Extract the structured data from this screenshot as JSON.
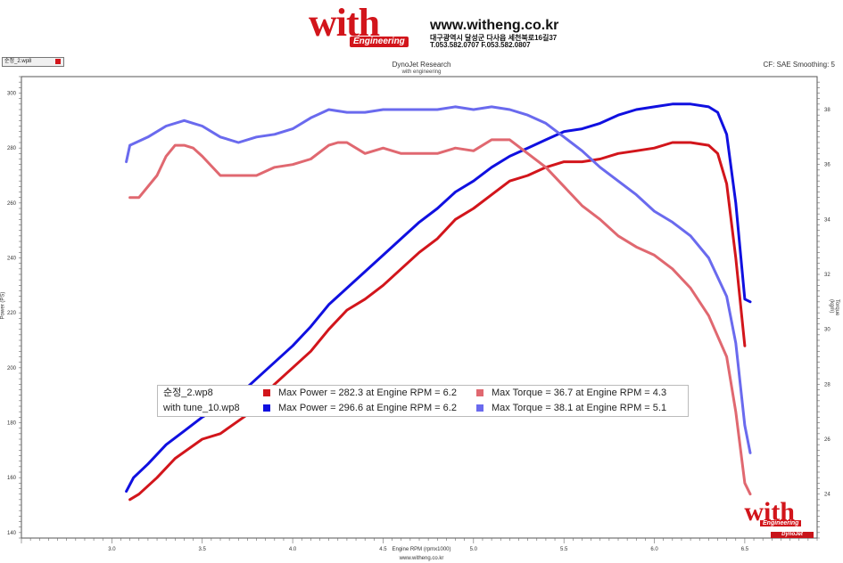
{
  "header": {
    "logo_text": "with",
    "logo_sub": "Engineering",
    "website": "www.witheng.co.kr",
    "address": "대구광역시 달성군 다사읍 세천북로16길37",
    "phone": "T.053.582.0707 F.053.582.0807"
  },
  "file_tab": {
    "label": "순정_2.wp8"
  },
  "chart_data": {
    "type": "line",
    "title": "DynoJet Research",
    "subtitle": "with engineering",
    "corner_note": "CF: SAE Smoothing: 5",
    "xlabel": "Engine RPM (rpmx1000)",
    "ylabel_left": "Power (PS)",
    "ylabel_right": "Torque (kgm)",
    "footer": "www.witheng.co.kr",
    "xlim": [
      2.5,
      6.9
    ],
    "ylim_left": [
      138,
      306
    ],
    "ylim_right": [
      22.4,
      39.2
    ],
    "x_ticks": [
      3.0,
      3.5,
      4.0,
      4.5,
      5.0,
      5.5,
      6.0,
      6.5
    ],
    "x_tick_labels": [
      "3.0",
      "3.5",
      "4.0",
      "4.5",
      "5.0",
      "5.5",
      "6.0",
      "6.5"
    ],
    "y_left_ticks": [
      140,
      160,
      180,
      200,
      220,
      240,
      260,
      280,
      300
    ],
    "y_left_tick_labels": [
      "140",
      "160",
      "180",
      "200",
      "220",
      "240",
      "260",
      "280",
      "300"
    ],
    "y_right_ticks": [
      24,
      26,
      28,
      30,
      32,
      34,
      36,
      38
    ],
    "y_right_tick_labels": [
      "24",
      "26",
      "28",
      "30",
      "32",
      "34",
      "36",
      "38"
    ],
    "series": [
      {
        "name": "순정_2.wp8 Power",
        "axis": "left",
        "color": "#d2151b",
        "x": [
          3.1,
          3.15,
          3.25,
          3.35,
          3.5,
          3.6,
          3.75,
          3.9,
          4.0,
          4.1,
          4.2,
          4.3,
          4.4,
          4.5,
          4.6,
          4.7,
          4.8,
          4.9,
          5.0,
          5.1,
          5.2,
          5.3,
          5.4,
          5.5,
          5.6,
          5.7,
          5.8,
          5.9,
          6.0,
          6.1,
          6.2,
          6.3,
          6.35,
          6.4,
          6.45,
          6.5
        ],
        "y": [
          152,
          154,
          160,
          167,
          174,
          176,
          183,
          194,
          200,
          206,
          214,
          221,
          225,
          230,
          236,
          242,
          247,
          254,
          258,
          263,
          268,
          270,
          273,
          275,
          275,
          276,
          278,
          279,
          280,
          282,
          282,
          281,
          278,
          267,
          240,
          208
        ]
      },
      {
        "name": "with tune_10.wp8 Power",
        "axis": "left",
        "color": "#1010e0",
        "x": [
          3.08,
          3.12,
          3.2,
          3.3,
          3.4,
          3.5,
          3.6,
          3.7,
          3.8,
          3.9,
          4.0,
          4.1,
          4.2,
          4.3,
          4.4,
          4.5,
          4.6,
          4.7,
          4.8,
          4.9,
          5.0,
          5.1,
          5.2,
          5.3,
          5.4,
          5.5,
          5.6,
          5.7,
          5.8,
          5.9,
          6.0,
          6.1,
          6.2,
          6.3,
          6.35,
          6.4,
          6.45,
          6.5,
          6.53
        ],
        "y": [
          155,
          160,
          165,
          172,
          177,
          182,
          186,
          190,
          196,
          202,
          208,
          215,
          223,
          229,
          235,
          241,
          247,
          253,
          258,
          264,
          268,
          273,
          277,
          280,
          283,
          286,
          287,
          289,
          292,
          294,
          295,
          296,
          296,
          295,
          293,
          285,
          260,
          225,
          224
        ]
      },
      {
        "name": "순정_2.wp8 Torque",
        "axis": "right",
        "color": "#e06870",
        "x": [
          3.1,
          3.15,
          3.25,
          3.3,
          3.35,
          3.4,
          3.45,
          3.5,
          3.6,
          3.7,
          3.8,
          3.9,
          4.0,
          4.1,
          4.2,
          4.25,
          4.3,
          4.4,
          4.5,
          4.6,
          4.7,
          4.8,
          4.9,
          5.0,
          5.1,
          5.2,
          5.3,
          5.4,
          5.5,
          5.6,
          5.7,
          5.8,
          5.9,
          6.0,
          6.1,
          6.2,
          6.3,
          6.4,
          6.45,
          6.5,
          6.53
        ],
        "y": [
          34.8,
          34.8,
          35.6,
          36.3,
          36.7,
          36.7,
          36.6,
          36.3,
          35.6,
          35.6,
          35.6,
          35.9,
          36.0,
          36.2,
          36.7,
          36.8,
          36.8,
          36.4,
          36.6,
          36.4,
          36.4,
          36.4,
          36.6,
          36.5,
          36.9,
          36.9,
          36.4,
          35.9,
          35.2,
          34.5,
          34.0,
          33.4,
          33.0,
          32.7,
          32.2,
          31.5,
          30.5,
          29.0,
          27.0,
          24.4,
          24.0
        ]
      },
      {
        "name": "with tune_10.wp8 Torque",
        "axis": "right",
        "color": "#6a6aee",
        "x": [
          3.08,
          3.1,
          3.2,
          3.3,
          3.4,
          3.45,
          3.5,
          3.6,
          3.7,
          3.8,
          3.9,
          4.0,
          4.1,
          4.2,
          4.3,
          4.4,
          4.5,
          4.6,
          4.7,
          4.8,
          4.9,
          5.0,
          5.1,
          5.2,
          5.3,
          5.4,
          5.5,
          5.6,
          5.7,
          5.8,
          5.9,
          6.0,
          6.1,
          6.2,
          6.3,
          6.4,
          6.45,
          6.5,
          6.53
        ],
        "y": [
          36.1,
          36.7,
          37.0,
          37.4,
          37.6,
          37.5,
          37.4,
          37.0,
          36.8,
          37.0,
          37.1,
          37.3,
          37.7,
          38.0,
          37.9,
          37.9,
          38.0,
          38.0,
          38.0,
          38.0,
          38.1,
          38.0,
          38.1,
          38.0,
          37.8,
          37.5,
          37.0,
          36.5,
          35.9,
          35.4,
          34.9,
          34.3,
          33.9,
          33.4,
          32.6,
          31.2,
          29.5,
          26.5,
          25.5
        ]
      }
    ],
    "legend": [
      {
        "file": "순정_2.wp8",
        "power_color": "#d2151b",
        "power_text": "Max Power = 282.3 at Engine RPM = 6.2",
        "torque_color": "#e06870",
        "torque_text": "Max Torque = 36.7 at Engine RPM = 4.3"
      },
      {
        "file": "with tune_10.wp8",
        "power_color": "#1010e0",
        "power_text": "Max Power = 296.6 at Engine RPM = 6.2",
        "torque_color": "#6a6aee",
        "torque_text": "Max Torque = 38.1 at Engine RPM = 5.1"
      }
    ]
  },
  "branding": {
    "badge_text": "DynoJet"
  }
}
